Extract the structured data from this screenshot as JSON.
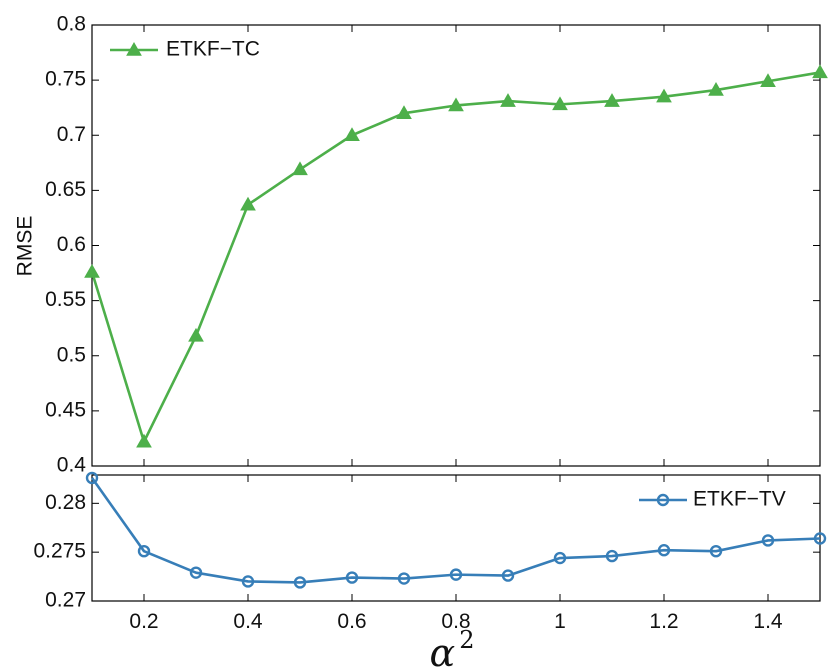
{
  "chart_data": {
    "type": "line",
    "xlabel": "α",
    "xlabel_superscript": "2",
    "x": [
      0.1,
      0.2,
      0.3,
      0.4,
      0.5,
      0.6,
      0.7,
      0.8,
      0.9,
      1.0,
      1.1,
      1.2,
      1.3,
      1.4,
      1.5
    ],
    "xlim": [
      0.1,
      1.5
    ],
    "x_ticks": [
      0.2,
      0.4,
      0.6,
      0.8,
      1.0,
      1.2,
      1.4
    ],
    "x_tick_labels": [
      "0.2",
      "0.4",
      "0.6",
      "0.8",
      "1",
      "1.2",
      "1.4"
    ],
    "panels": [
      {
        "id": "top",
        "ylabel": "RMSE",
        "ylim": [
          0.4,
          0.8
        ],
        "y_ticks": [
          0.4,
          0.45,
          0.5,
          0.55,
          0.6,
          0.65,
          0.7,
          0.75,
          0.8
        ],
        "y_tick_labels": [
          "0.4",
          "0.45",
          "0.5",
          "0.55",
          "0.6",
          "0.65",
          "0.7",
          "0.75",
          "0.8"
        ],
        "legend_position": "top-left",
        "series": [
          {
            "name": "ETKF−TC",
            "color": "#4daf4a",
            "marker": "triangle",
            "values": [
              0.576,
              0.422,
              0.518,
              0.637,
              0.669,
              0.7,
              0.72,
              0.727,
              0.731,
              0.728,
              0.731,
              0.735,
              0.741,
              0.749,
              0.757
            ]
          }
        ]
      },
      {
        "id": "bottom",
        "ylabel": "",
        "ylim": [
          0.27,
          0.2829
        ],
        "y_ticks": [
          0.27,
          0.275,
          0.28
        ],
        "y_tick_labels": [
          "0.27",
          "0.275",
          "0.28"
        ],
        "legend_position": "top-right",
        "series": [
          {
            "name": "ETKF−TV",
            "color": "#377eb8",
            "marker": "circle",
            "values": [
              0.2826,
              0.2751,
              0.2729,
              0.272,
              0.2719,
              0.2724,
              0.2723,
              0.2727,
              0.2726,
              0.2744,
              0.2746,
              0.2752,
              0.2751,
              0.2762,
              0.2764
            ]
          }
        ]
      }
    ],
    "grid": false
  }
}
